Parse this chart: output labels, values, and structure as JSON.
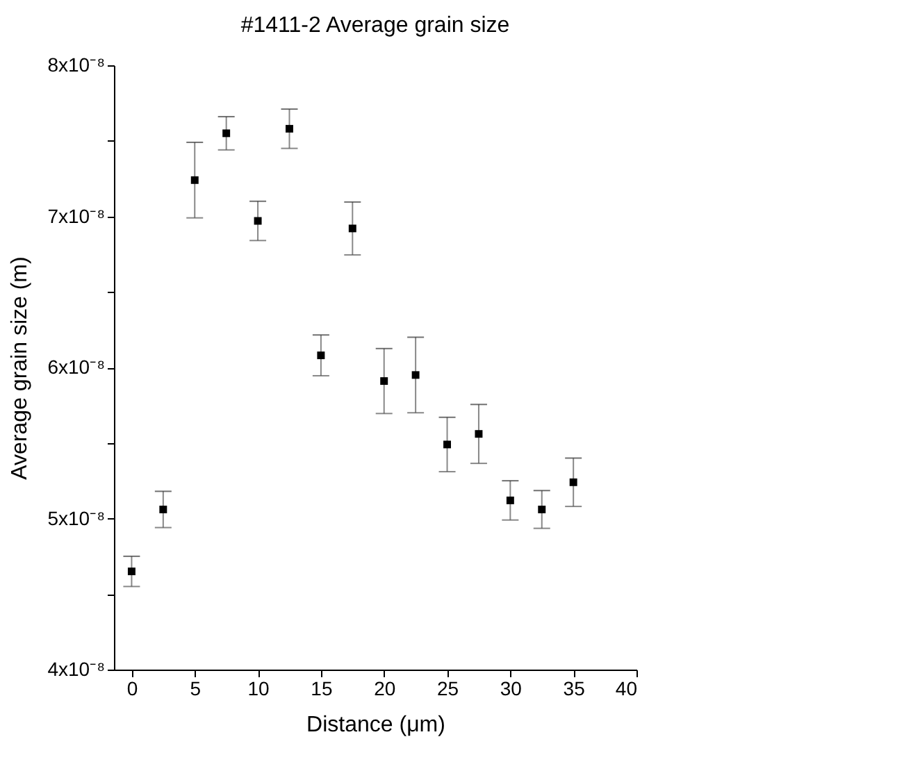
{
  "chart_data": {
    "type": "scatter",
    "title": "#1411-2 Average grain size",
    "xlabel": "Distance (μm)",
    "ylabel": "Average grain size (m)",
    "x": [
      0,
      2.5,
      5,
      7.5,
      10,
      12.5,
      15,
      17.5,
      20,
      22.5,
      25,
      27.5,
      30,
      32.5,
      35
    ],
    "series": [
      {
        "color": "#000000",
        "values": [
          4.65e-08,
          5.06e-08,
          7.24e-08,
          7.55e-08,
          6.97e-08,
          7.58e-08,
          6.08e-08,
          6.92e-08,
          5.91e-08,
          5.95e-08,
          5.49e-08,
          5.56e-08,
          5.12e-08,
          5.06e-08,
          5.24e-08
        ],
        "errors": [
          1e-09,
          1.2e-09,
          2.5e-09,
          1.1e-09,
          1.3e-09,
          1.3e-09,
          1.35e-09,
          1.75e-09,
          2.15e-09,
          2.5e-09,
          1.8e-09,
          1.95e-09,
          1.3e-09,
          1.25e-09,
          1.6e-09
        ]
      }
    ],
    "xlim": [
      -1.4,
      40
    ],
    "xticks": [
      0,
      5,
      10,
      15,
      20,
      25,
      30,
      35,
      40
    ],
    "ylim": [
      4e-08,
      8e-08
    ],
    "yticks": [
      {
        "value": 4e-08,
        "label": "4x10⁻⁸"
      },
      {
        "value": 4.5e-08,
        "label": null
      },
      {
        "value": 5e-08,
        "label": "5x10⁻⁸"
      },
      {
        "value": 5.5e-08,
        "label": null
      },
      {
        "value": 6e-08,
        "label": "6x10⁻⁸"
      },
      {
        "value": 6.5e-08,
        "label": null
      },
      {
        "value": 7e-08,
        "label": "7x10⁻⁸"
      },
      {
        "value": 7.5e-08,
        "label": null
      },
      {
        "value": 8e-08,
        "label": "8x10⁻⁸"
      }
    ],
    "grid": false,
    "marker": "square"
  }
}
